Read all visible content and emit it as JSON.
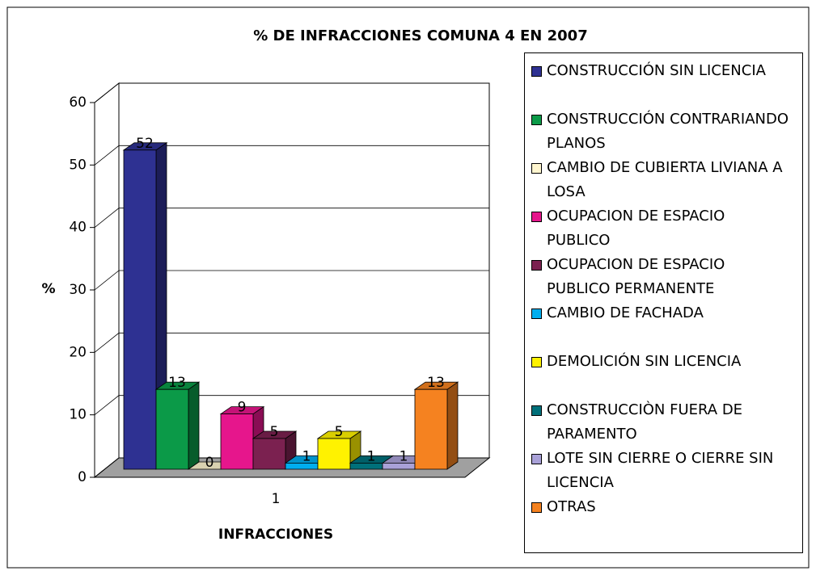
{
  "chart_data": {
    "type": "bar3d",
    "title": "% DE INFRACCIONES COMUNA 4 EN 2007",
    "xlabel": "INFRACCIONES",
    "ylabel": "%",
    "categories": [
      "1"
    ],
    "series": [
      {
        "name": "CONSTRUCCIÓN SIN LICENCIA",
        "color": "#2e3192",
        "values": [
          52
        ]
      },
      {
        "name": "CONSTRUCCIÓN CONTRARIANDO PLANOS",
        "color": "#0b9a48",
        "values": [
          13
        ]
      },
      {
        "name": "CAMBIO DE CUBIERTA LIVIANA A LOSA",
        "color": "#fff6cf",
        "values": [
          0
        ]
      },
      {
        "name": "OCUPACION DE ESPACIO PUBLICO",
        "color": "#e6168c",
        "values": [
          9
        ]
      },
      {
        "name": "OCUPACION DE ESPACIO PUBLICO PERMANENTE",
        "color": "#7b2150",
        "values": [
          5
        ]
      },
      {
        "name": "CAMBIO DE FACHADA",
        "color": "#00aeef",
        "values": [
          1
        ]
      },
      {
        "name": "DEMOLICIÓN SIN LICENCIA",
        "color": "#fff200",
        "values": [
          5
        ]
      },
      {
        "name": "CONSTRUCCIÒN FUERA DE PARAMENTO",
        "color": "#00707a",
        "values": [
          1
        ]
      },
      {
        "name": "LOTE SIN CIERRE O CIERRE SIN LICENCIA",
        "color": "#a9a1d8",
        "values": [
          1
        ]
      },
      {
        "name": "OTRAS",
        "color": "#f58220",
        "values": [
          13
        ]
      }
    ],
    "ylim": [
      0,
      60
    ],
    "yticks": [
      0,
      10,
      20,
      30,
      40,
      50,
      60
    ],
    "grid": true
  }
}
